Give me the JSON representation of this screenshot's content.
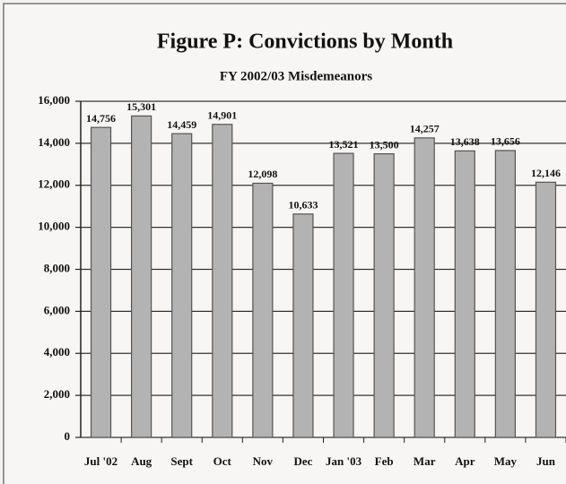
{
  "chart_data": {
    "type": "bar",
    "title": "Figure P:  Convictions by Month",
    "subtitle": "FY 2002/03 Misdemeanors",
    "categories": [
      "Jul '02",
      "Aug",
      "Sept",
      "Oct",
      "Nov",
      "Dec",
      "Jan '03",
      "Feb",
      "Mar",
      "Apr",
      "May",
      "Jun"
    ],
    "values": [
      14756,
      15301,
      14459,
      14901,
      12098,
      10633,
      13521,
      13500,
      14257,
      13638,
      13656,
      12146
    ],
    "value_labels": [
      "14,756",
      "15,301",
      "14,459",
      "14,901",
      "12,098",
      "10,633",
      "13,521",
      "13,500",
      "14,257",
      "13,638",
      "13,656",
      "12,146"
    ],
    "color": "#b3b3b3",
    "ylim": [
      0,
      16000
    ],
    "yticks": [
      0,
      {
        "value": 2000,
        "label": "2,000"
      },
      {
        "value": 4000,
        "label": "4,000"
      },
      {
        "value": 6000,
        "label": "6,000"
      },
      {
        "value": 8000,
        "label": "8,000"
      },
      {
        "value": 10000,
        "label": "10,000"
      },
      {
        "value": 12000,
        "label": "12,000"
      },
      {
        "value": 14000,
        "label": "14,000"
      },
      {
        "value": 16000,
        "label": "16,000"
      }
    ],
    "grid": true
  }
}
